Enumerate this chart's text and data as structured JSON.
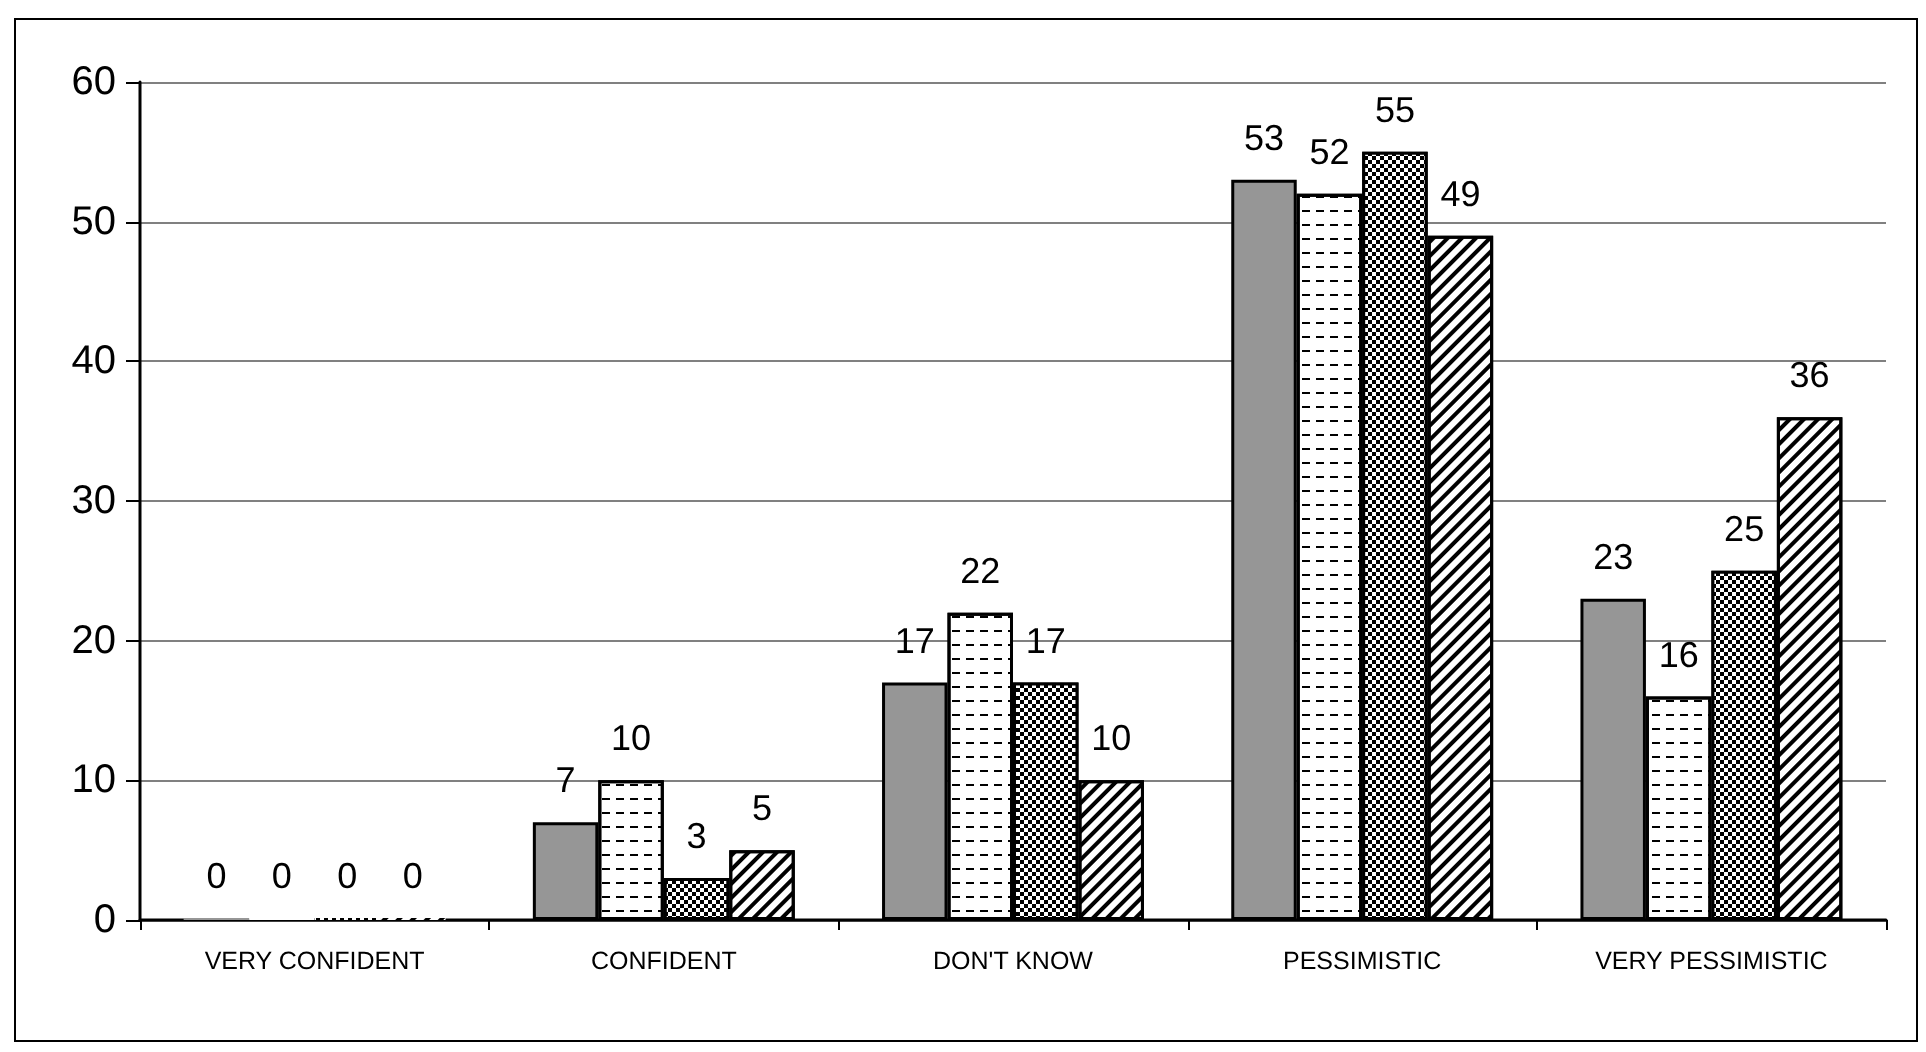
{
  "chart_data": {
    "type": "bar",
    "categories": [
      "VERY CONFIDENT",
      "CONFIDENT",
      "DON'T KNOW",
      "PESSIMISTIC",
      "VERY PESSIMISTIC"
    ],
    "series": [
      {
        "color": "#969696",
        "values": [
          0,
          7,
          17,
          53,
          23
        ]
      },
      {
        "color": "#ffffff",
        "values": [
          0,
          10,
          22,
          52,
          16
        ]
      },
      {
        "color": "#000000",
        "values": [
          0,
          3,
          17,
          55,
          25
        ]
      },
      {
        "color": "#ffffff",
        "values": [
          0,
          5,
          10,
          49,
          36
        ]
      }
    ],
    "ylim": [
      0,
      60
    ],
    "yticks": [
      0,
      10,
      20,
      30,
      40,
      50,
      60
    ],
    "grid": "y",
    "data_labels": true
  }
}
